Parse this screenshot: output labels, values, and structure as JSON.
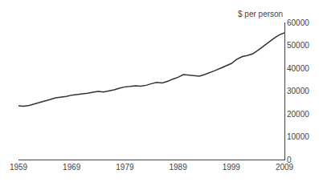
{
  "chart_data": {
    "type": "line",
    "ylabel": "$ per person",
    "x": [
      1959,
      1960,
      1961,
      1962,
      1963,
      1964,
      1965,
      1966,
      1967,
      1968,
      1969,
      1970,
      1971,
      1972,
      1973,
      1974,
      1975,
      1976,
      1977,
      1978,
      1979,
      1980,
      1981,
      1982,
      1983,
      1984,
      1985,
      1986,
      1987,
      1988,
      1989,
      1990,
      1991,
      1992,
      1993,
      1994,
      1995,
      1996,
      1997,
      1998,
      1999,
      2000,
      2001,
      2002,
      2003,
      2004,
      2005,
      2006,
      2007,
      2008,
      2009
    ],
    "values": [
      23500,
      23300,
      23700,
      24300,
      24900,
      25600,
      26300,
      27000,
      27200,
      27600,
      28200,
      28400,
      28600,
      29000,
      29500,
      29800,
      29600,
      30000,
      30500,
      31200,
      31800,
      32000,
      32300,
      32100,
      32500,
      33200,
      33800,
      33500,
      34200,
      35200,
      36000,
      37200,
      37000,
      36800,
      36500,
      37200,
      38000,
      39000,
      40000,
      41000,
      42000,
      43800,
      45000,
      45500,
      46200,
      47800,
      49500,
      51500,
      53000,
      54500,
      55500
    ],
    "color": "#333333",
    "xlim": [
      1959,
      2009
    ],
    "ylim": [
      0,
      60000
    ],
    "xticks": [
      1959,
      1969,
      1979,
      1989,
      1999,
      2009
    ],
    "yticks": [
      0,
      10000,
      20000,
      30000,
      40000,
      50000,
      60000
    ],
    "grid": false
  }
}
